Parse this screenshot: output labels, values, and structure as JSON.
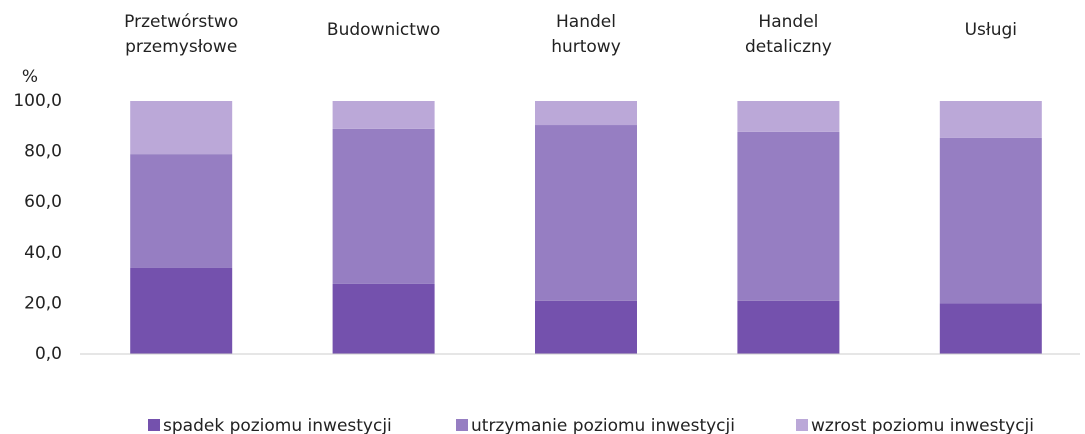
{
  "chart_data": {
    "type": "stacked_bar",
    "y_label": "%",
    "categories": [
      "Przetwórstwo\nprzemysłowe",
      "Budownictwo",
      "Handel\nhurtowy",
      "Handel\ndetaliczny",
      "Usługi"
    ],
    "series": [
      {
        "name": "spadek poziomu inwestycji",
        "color": "#7451ad",
        "values": [
          34.0,
          27.7,
          21.0,
          21.0,
          20.0
        ]
      },
      {
        "name": "utrzymanie poziomu inwestycji",
        "color": "#967ec2",
        "values": [
          45.0,
          61.3,
          69.5,
          66.8,
          65.4
        ]
      },
      {
        "name": "wzrost poziomu inwestycji",
        "color": "#bba8d8",
        "values": [
          21.0,
          11.0,
          9.5,
          12.2,
          14.6
        ]
      }
    ],
    "ylim": [
      0,
      100
    ],
    "yticks": [
      {
        "value": 0,
        "label": "0,0"
      },
      {
        "value": 20,
        "label": "20,0"
      },
      {
        "value": 40,
        "label": "40,0"
      },
      {
        "value": 60,
        "label": "60,0"
      },
      {
        "value": 80,
        "label": "80,0"
      },
      {
        "value": 100,
        "label": "100,0"
      }
    ],
    "legend": "bottom"
  }
}
